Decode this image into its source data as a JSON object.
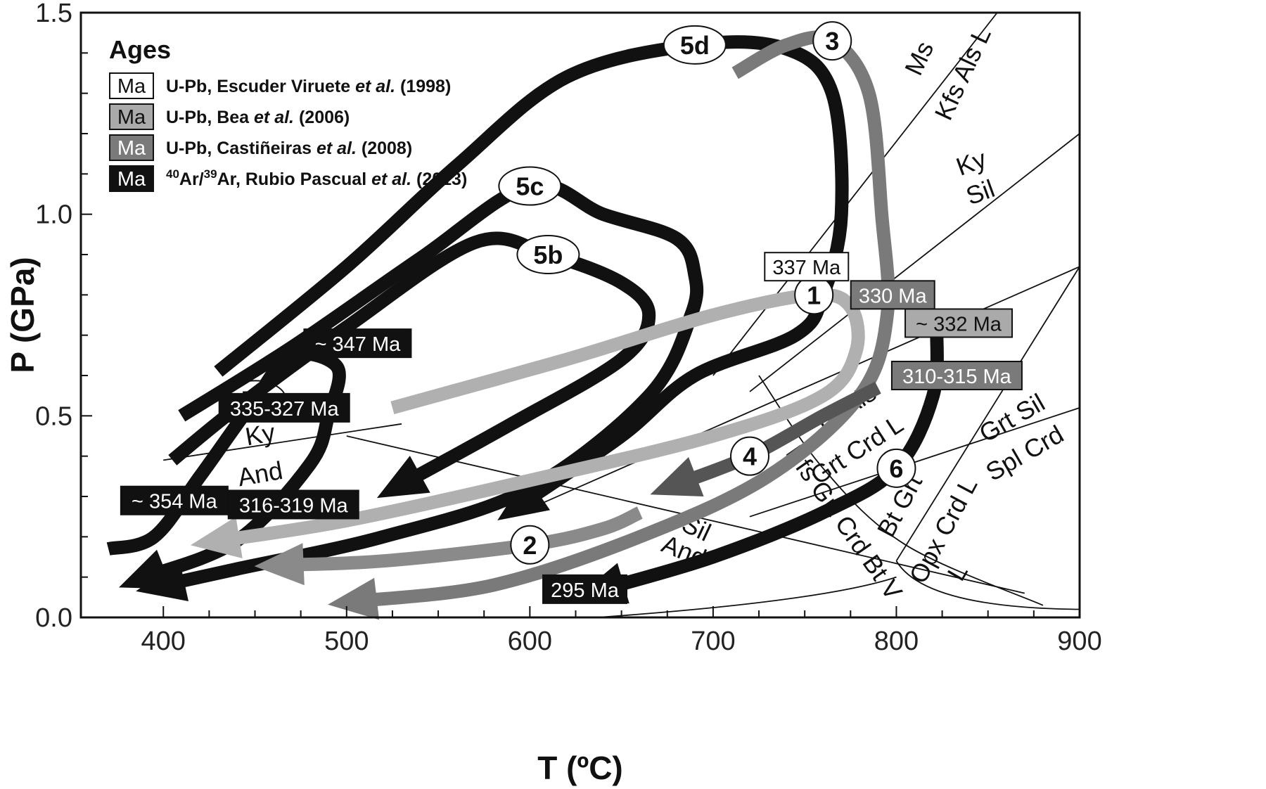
{
  "chart_data": {
    "type": "line",
    "title": "",
    "xlabel": "T (ºC)",
    "ylabel": "P (GPa)",
    "xlim": [
      355,
      900
    ],
    "ylim": [
      0,
      1.5
    ],
    "x_ticks": [
      400,
      500,
      600,
      700,
      800,
      900
    ],
    "x_tick_labels": [
      "400",
      "500",
      "600",
      "700",
      "800",
      "900"
    ],
    "y_ticks": [
      0.0,
      0.5,
      1.0,
      1.5
    ],
    "y_tick_labels": [
      "0.0",
      "0.5",
      "1.0",
      "1.5"
    ],
    "legend": {
      "title": "Ages",
      "position": "top-left",
      "entries": [
        {
          "tag": "Ma",
          "style": "white",
          "fill": "#ffffff",
          "text_color": "#111111",
          "source": "U-Pb, Escuder Viruete",
          "etal": "et al.",
          "year": "(1998)"
        },
        {
          "tag": "Ma",
          "style": "light-gray",
          "fill": "#aaaaaa",
          "text_color": "#111111",
          "source": "U-Pb, Bea",
          "etal": "et al.",
          "year": "(2006)"
        },
        {
          "tag": "Ma",
          "style": "mid-gray",
          "fill": "#7a7a7a",
          "text_color": "#ffffff",
          "source": "U-Pb, Castiñeiras",
          "etal": "et al.",
          "year": "(2008)"
        },
        {
          "tag": "Ma",
          "style": "black",
          "fill": "#111111",
          "text_color": "#ffffff",
          "source_sup": "40",
          "source_mid": "Ar/",
          "source_sup2": "39",
          "source_end": "Ar, Rubio Pascual",
          "etal": "et al.",
          "year": "(2013)"
        }
      ]
    },
    "reaction_lines": [
      {
        "name": "Ky-Sil",
        "points": [
          [
            720,
            0.56
          ],
          [
            900,
            1.2
          ]
        ],
        "labels": [
          "Ky",
          "Sil"
        ]
      },
      {
        "name": "Ky-And",
        "points": [
          [
            400,
            0.39
          ],
          [
            530,
            0.48
          ]
        ],
        "labels": [
          "Ky",
          "And"
        ]
      },
      {
        "name": "And-Sil",
        "points": [
          [
            500,
            0.45
          ],
          [
            870,
            0.06
          ]
        ],
        "labels": [
          "Sil",
          "And"
        ]
      },
      {
        "name": "Ms Kfs Als L",
        "points": [
          [
            700,
            0.6
          ],
          [
            855,
            1.5
          ]
        ],
        "labels": [
          "Ms",
          "Kfs Als L"
        ]
      },
      {
        "name": "Bt Als Grt Crd L",
        "points": [
          [
            590,
            0.25
          ],
          [
            900,
            0.87
          ]
        ],
        "labels": [
          "Bt Als",
          "Grt Crd L"
        ]
      },
      {
        "name": "Kfs Grt Crd Bt V",
        "points": [
          [
            725,
            0.6
          ],
          [
            880,
            0.03
          ]
        ],
        "labels": [
          "Kfs Grt Crd Bt V"
        ]
      },
      {
        "name": "Bt Grt Opx Crd L",
        "points": [
          [
            800,
            0.14
          ],
          [
            900,
            0.87
          ]
        ],
        "labels": [
          "Bt Grt",
          "Opx Crd L"
        ]
      },
      {
        "name": "Grt Sil Spl Crd",
        "points": [
          [
            720,
            0.25
          ],
          [
            900,
            0.52
          ]
        ],
        "labels": [
          "Grt Sil",
          "Spl Crd"
        ]
      },
      {
        "name": "Solidus L",
        "points": [
          [
            800,
            0.14
          ],
          [
            900,
            0.02
          ]
        ],
        "labels": [
          "L"
        ]
      }
    ],
    "series": [
      {
        "name": "1",
        "label": "1",
        "color": "#b0b0b0",
        "points": [
          [
            525,
            0.52
          ],
          [
            620,
            0.64
          ],
          [
            700,
            0.75
          ],
          [
            755,
            0.8
          ],
          [
            775,
            0.77
          ],
          [
            778,
            0.66
          ],
          [
            760,
            0.55
          ],
          [
            700,
            0.45
          ],
          [
            600,
            0.34
          ],
          [
            500,
            0.24
          ],
          [
            430,
            0.19
          ]
        ]
      },
      {
        "name": "2",
        "label": "2",
        "color": "#8a8a8a",
        "points": [
          [
            660,
            0.26
          ],
          [
            640,
            0.22
          ],
          [
            600,
            0.18
          ],
          [
            520,
            0.14
          ],
          [
            465,
            0.13
          ]
        ]
      },
      {
        "name": "3",
        "label": "3",
        "color": "#7a7a7a",
        "points": [
          [
            712,
            1.35
          ],
          [
            740,
            1.42
          ],
          [
            765,
            1.43
          ],
          [
            785,
            1.3
          ],
          [
            792,
            1.0
          ],
          [
            795,
            0.75
          ],
          [
            780,
            0.55
          ],
          [
            730,
            0.35
          ],
          [
            660,
            0.2
          ],
          [
            580,
            0.08
          ],
          [
            505,
            0.04
          ]
        ]
      },
      {
        "name": "4",
        "label": "4",
        "color": "#555555",
        "points": [
          [
            790,
            0.57
          ],
          [
            760,
            0.5
          ],
          [
            720,
            0.4
          ],
          [
            680,
            0.33
          ]
        ]
      },
      {
        "name": "5a",
        "label": "5a",
        "color": "#111111",
        "points": [
          [
            370,
            0.17
          ],
          [
            395,
            0.2
          ],
          [
            420,
            0.35
          ],
          [
            450,
            0.54
          ],
          [
            470,
            0.65
          ],
          [
            495,
            0.62
          ],
          [
            490,
            0.5
          ],
          [
            480,
            0.38
          ],
          [
            440,
            0.19
          ],
          [
            390,
            0.1
          ]
        ]
      },
      {
        "name": "5b",
        "label": "5b",
        "color": "#111111",
        "points": [
          [
            405,
            0.39
          ],
          [
            440,
            0.52
          ],
          [
            500,
            0.72
          ],
          [
            570,
            0.93
          ],
          [
            610,
            0.9
          ],
          [
            650,
            0.83
          ],
          [
            665,
            0.75
          ],
          [
            650,
            0.64
          ],
          [
            590,
            0.48
          ],
          [
            530,
            0.33
          ]
        ]
      },
      {
        "name": "5c",
        "label": "5c",
        "color": "#111111",
        "points": [
          [
            410,
            0.5
          ],
          [
            470,
            0.67
          ],
          [
            540,
            0.89
          ],
          [
            600,
            1.07
          ],
          [
            640,
            1.0
          ],
          [
            680,
            0.94
          ],
          [
            690,
            0.85
          ],
          [
            688,
            0.75
          ],
          [
            665,
            0.55
          ],
          [
            600,
            0.32
          ],
          [
            520,
            0.2
          ],
          [
            440,
            0.12
          ],
          [
            400,
            0.08
          ]
        ]
      },
      {
        "name": "5d",
        "label": "5d",
        "color": "#111111",
        "points": [
          [
            430,
            0.61
          ],
          [
            500,
            0.87
          ],
          [
            560,
            1.12
          ],
          [
            620,
            1.34
          ],
          [
            690,
            1.42
          ],
          [
            740,
            1.41
          ],
          [
            765,
            1.3
          ],
          [
            770,
            1.0
          ],
          [
            760,
            0.8
          ],
          [
            745,
            0.7
          ],
          [
            690,
            0.6
          ],
          [
            650,
            0.45
          ],
          [
            595,
            0.28
          ]
        ]
      },
      {
        "name": "6",
        "label": "6",
        "color": "#111111",
        "points": [
          [
            822,
            0.72
          ],
          [
            820,
            0.55
          ],
          [
            800,
            0.37
          ],
          [
            760,
            0.26
          ],
          [
            700,
            0.15
          ],
          [
            640,
            0.07
          ]
        ]
      }
    ],
    "age_labels": [
      {
        "text": "337 Ma",
        "style": "white",
        "T": 751,
        "P": 0.87
      },
      {
        "text": "330 Ma",
        "style": "mid-gray",
        "T": 798,
        "P": 0.8
      },
      {
        "text": "~ 332 Ma",
        "style": "light-gray",
        "T": 834,
        "P": 0.73
      },
      {
        "text": "310-315 Ma",
        "style": "mid-gray",
        "T": 833,
        "P": 0.6
      },
      {
        "text": "~ 347 Ma",
        "style": "black",
        "T": 506,
        "P": 0.68
      },
      {
        "text": "335-327 Ma",
        "style": "black",
        "T": 466,
        "P": 0.52
      },
      {
        "text": "~ 354 Ma",
        "style": "black",
        "T": 406,
        "P": 0.29
      },
      {
        "text": "316-319 Ma",
        "style": "black",
        "T": 471,
        "P": 0.28
      },
      {
        "text": "295 Ma",
        "style": "black",
        "T": 630,
        "P": 0.07
      }
    ]
  }
}
